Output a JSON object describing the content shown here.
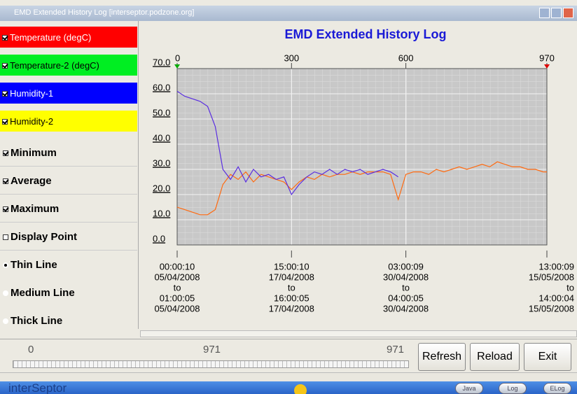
{
  "window": {
    "title": "EMD Extended History Log [interseptor.podzone.org]"
  },
  "sidebar": {
    "toggles": [
      {
        "label": "Minimum",
        "checked": true
      },
      {
        "label": "Average",
        "checked": true
      },
      {
        "label": "Maximum",
        "checked": true
      },
      {
        "label": "Display Point",
        "checked": false
      }
    ],
    "line_styles": [
      {
        "label": "Thin Line",
        "selected": true
      },
      {
        "label": "Medium Line",
        "selected": false
      },
      {
        "label": "Thick Line",
        "selected": false
      }
    ]
  },
  "chart_data": {
    "type": "line",
    "title": "EMD Extended History Log",
    "x": [
      0,
      20,
      40,
      60,
      80,
      100,
      120,
      140,
      160,
      180,
      200,
      220,
      240,
      260,
      280,
      300,
      320,
      340,
      360,
      380,
      400,
      420,
      440,
      460,
      480,
      500,
      520,
      540,
      560,
      580,
      600,
      620,
      640,
      660,
      680,
      700,
      720,
      740,
      760,
      780,
      800,
      820,
      840,
      860,
      880,
      900,
      920,
      940,
      960,
      970
    ],
    "series": [
      {
        "name": "Temperature (degC)",
        "legend_color": "#ff0000",
        "color": "#ff6a10",
        "checked": true,
        "values": [
          15,
          14,
          13,
          12,
          12,
          14,
          24,
          28,
          26,
          29,
          25,
          28,
          27,
          26,
          25,
          22,
          25,
          27,
          26,
          28,
          27,
          28,
          28,
          29,
          28,
          29,
          29,
          29,
          28,
          18,
          28,
          29,
          29,
          28,
          30,
          29,
          30,
          31,
          30,
          31,
          32,
          31,
          33,
          32,
          31,
          31,
          30,
          30,
          29,
          29
        ]
      },
      {
        "name": "Humidity-1",
        "legend_color": "#0000ff",
        "color": "#5a2ee0",
        "checked": true,
        "values": [
          61,
          59,
          58,
          57,
          55,
          47,
          30,
          26,
          31,
          25,
          30,
          27,
          28,
          26,
          27,
          20,
          24,
          27,
          29,
          28,
          30,
          28,
          30,
          29,
          30,
          28,
          29,
          30,
          29,
          27,
          null,
          null,
          null,
          null,
          null,
          null,
          null,
          null,
          null,
          null,
          null,
          null,
          null,
          null,
          null,
          null,
          null,
          null,
          null,
          null
        ]
      }
    ],
    "other_channels": [
      {
        "name": "Temperature-2 (degC)",
        "legend_color": "#00ee22",
        "checked": true
      },
      {
        "name": "Humidity-2",
        "legend_color": "#ffff00",
        "checked": true
      }
    ],
    "xlim": [
      0,
      970
    ],
    "xticks": [
      0,
      300,
      600,
      970
    ],
    "x_range_labels": [
      [
        "00:00:10",
        "05/04/2008",
        "to",
        "01:00:05",
        "05/04/2008"
      ],
      [
        "15:00:10",
        "17/04/2008",
        "to",
        "16:00:05",
        "17/04/2008"
      ],
      [
        "03:00:09",
        "30/04/2008",
        "to",
        "04:00:05",
        "30/04/2008"
      ],
      [
        "13:00:09",
        "15/05/2008",
        "to",
        "14:00:04",
        "15/05/2008"
      ]
    ],
    "ylim": [
      0,
      70
    ],
    "yticks": [
      {
        "value": 0,
        "label": "0.0"
      },
      {
        "value": 10,
        "label": "10.0"
      },
      {
        "value": 20,
        "label": "20.0"
      },
      {
        "value": 30,
        "label": "30.0"
      },
      {
        "value": 40,
        "label": "40.0"
      },
      {
        "value": 50,
        "label": "50.0"
      },
      {
        "value": 60,
        "label": "60.0"
      },
      {
        "value": 70,
        "label": "70.0"
      }
    ],
    "grid": true
  },
  "controls": {
    "slider": {
      "min": 0,
      "value": 971,
      "max": 971
    },
    "buttons": [
      "Refresh",
      "Reload",
      "Exit"
    ]
  },
  "taskbar": {
    "app": "interSeptor",
    "pills": [
      "Java",
      "Log",
      "ELog"
    ]
  }
}
